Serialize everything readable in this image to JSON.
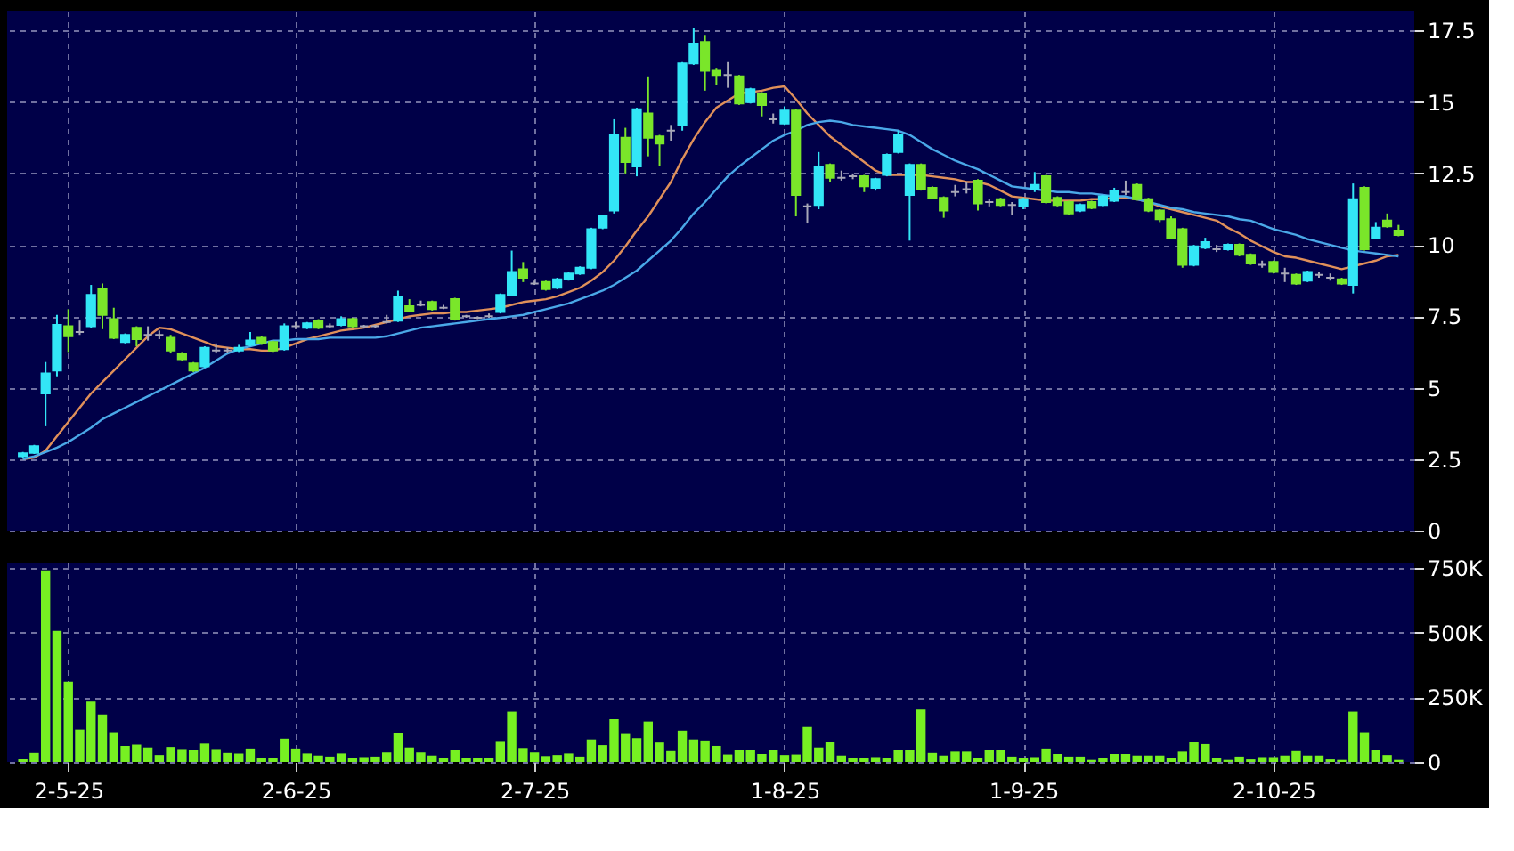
{
  "chart_data": [
    {
      "type": "candlestick",
      "categories": [
        null,
        null,
        null,
        null,
        null,
        null,
        null,
        null,
        null,
        null,
        null,
        null,
        null,
        null,
        null,
        null,
        null,
        null,
        null,
        null,
        null,
        null,
        null,
        null,
        null,
        null,
        null,
        null,
        null,
        null,
        null,
        null,
        null,
        null,
        null,
        null,
        null,
        null,
        null,
        null,
        null,
        null,
        null,
        null,
        null,
        null,
        null,
        null,
        null,
        null,
        null,
        null,
        null,
        null,
        null,
        null,
        null,
        null,
        null,
        null,
        null,
        null,
        null,
        null,
        null,
        null,
        null,
        null,
        null,
        null,
        null,
        null,
        null,
        null,
        null,
        null,
        null,
        null,
        null,
        null,
        null,
        null,
        null,
        null,
        null,
        null,
        null,
        null,
        null,
        null,
        null,
        null,
        null,
        null,
        null,
        null,
        null,
        null,
        null,
        null,
        null,
        null,
        null,
        null,
        null,
        null,
        null,
        null,
        null,
        null,
        null,
        null,
        null,
        null,
        null,
        null,
        null,
        null,
        null,
        null,
        null,
        null
      ],
      "ohlc": [
        [
          2.6,
          2.75,
          2.55,
          2.7
        ],
        [
          2.72,
          3.0,
          2.68,
          2.95
        ],
        [
          4.8,
          5.9,
          3.65,
          5.5
        ],
        [
          5.6,
          7.55,
          5.4,
          7.2
        ],
        [
          7.15,
          7.75,
          6.25,
          6.8
        ],
        [
          6.95,
          7.35,
          6.85,
          6.95
        ],
        [
          7.15,
          8.6,
          7.1,
          8.25
        ],
        [
          8.45,
          8.65,
          7.05,
          7.55
        ],
        [
          7.4,
          7.8,
          6.7,
          6.75
        ],
        [
          6.6,
          6.9,
          6.55,
          6.85
        ],
        [
          7.1,
          7.15,
          6.45,
          6.7
        ],
        [
          6.85,
          7.15,
          6.65,
          6.85
        ],
        [
          6.85,
          7.0,
          6.7,
          6.85
        ],
        [
          6.75,
          6.85,
          6.2,
          6.3
        ],
        [
          6.2,
          6.25,
          5.95,
          6.0
        ],
        [
          5.85,
          5.9,
          5.55,
          5.6
        ],
        [
          5.75,
          6.45,
          5.7,
          6.4
        ],
        [
          6.3,
          6.55,
          6.2,
          6.3
        ],
        [
          6.3,
          6.4,
          6.2,
          6.3
        ],
        [
          6.3,
          6.5,
          6.25,
          6.4
        ],
        [
          6.5,
          6.95,
          6.45,
          6.65
        ],
        [
          6.75,
          6.8,
          6.5,
          6.55
        ],
        [
          6.6,
          6.65,
          6.25,
          6.3
        ],
        [
          6.35,
          7.25,
          6.3,
          7.15
        ],
        [
          7.15,
          7.3,
          7.05,
          7.15
        ],
        [
          7.1,
          7.3,
          7.05,
          7.25
        ],
        [
          7.35,
          7.4,
          7.05,
          7.1
        ],
        [
          7.15,
          7.25,
          7.1,
          7.15
        ],
        [
          7.2,
          7.5,
          7.15,
          7.4
        ],
        [
          7.4,
          7.45,
          7.1,
          7.15
        ],
        [
          7.15,
          7.2,
          7.1,
          7.15
        ],
        [
          7.15,
          7.2,
          7.1,
          7.15
        ],
        [
          7.3,
          7.55,
          7.25,
          7.3
        ],
        [
          7.35,
          8.4,
          7.3,
          8.2
        ],
        [
          7.85,
          8.1,
          7.65,
          7.7
        ],
        [
          7.9,
          8.05,
          7.85,
          7.9
        ],
        [
          8.0,
          8.05,
          7.7,
          7.75
        ],
        [
          7.8,
          7.9,
          7.75,
          7.8
        ],
        [
          8.1,
          8.15,
          7.35,
          7.4
        ],
        [
          7.5,
          7.55,
          7.45,
          7.5
        ],
        [
          7.45,
          7.5,
          7.4,
          7.45
        ],
        [
          7.5,
          7.6,
          7.45,
          7.5
        ],
        [
          7.65,
          8.3,
          7.6,
          8.25
        ],
        [
          8.25,
          9.8,
          8.2,
          9.05
        ],
        [
          9.15,
          9.4,
          8.7,
          8.85
        ],
        [
          8.65,
          8.75,
          8.6,
          8.65
        ],
        [
          8.7,
          8.75,
          8.4,
          8.45
        ],
        [
          8.5,
          8.85,
          8.45,
          8.8
        ],
        [
          8.8,
          9.05,
          8.75,
          9.0
        ],
        [
          9.0,
          9.25,
          8.95,
          9.2
        ],
        [
          9.2,
          10.6,
          9.15,
          10.55
        ],
        [
          10.6,
          11.05,
          10.55,
          11.0
        ],
        [
          11.2,
          14.4,
          11.1,
          13.85
        ],
        [
          13.75,
          14.1,
          12.5,
          12.9
        ],
        [
          12.75,
          14.8,
          12.4,
          14.75
        ],
        [
          14.6,
          15.9,
          13.1,
          13.75
        ],
        [
          13.8,
          13.85,
          12.75,
          13.55
        ],
        [
          14.0,
          14.2,
          13.65,
          14.0
        ],
        [
          14.2,
          16.4,
          14.0,
          16.35
        ],
        [
          16.35,
          17.6,
          16.3,
          17.05
        ],
        [
          17.1,
          17.35,
          15.4,
          16.1
        ],
        [
          16.1,
          16.2,
          15.6,
          15.95
        ],
        [
          15.95,
          16.4,
          15.5,
          15.95
        ],
        [
          15.9,
          15.95,
          14.9,
          14.95
        ],
        [
          15.0,
          15.5,
          14.95,
          15.45
        ],
        [
          15.3,
          15.35,
          14.5,
          14.9
        ],
        [
          14.4,
          14.6,
          14.25,
          14.4
        ],
        [
          14.25,
          14.85,
          14.2,
          14.7
        ],
        [
          14.7,
          14.75,
          11.0,
          11.75
        ],
        [
          11.35,
          11.45,
          10.75,
          11.35
        ],
        [
          11.4,
          13.25,
          11.25,
          12.75
        ],
        [
          12.8,
          12.85,
          12.2,
          12.35
        ],
        [
          12.35,
          12.6,
          12.25,
          12.35
        ],
        [
          12.4,
          12.5,
          12.3,
          12.4
        ],
        [
          12.4,
          12.45,
          11.85,
          12.05
        ],
        [
          12.0,
          12.35,
          11.9,
          12.3
        ],
        [
          12.45,
          13.2,
          12.4,
          13.15
        ],
        [
          13.25,
          14.0,
          13.2,
          13.85
        ],
        [
          11.75,
          12.85,
          10.15,
          12.8
        ],
        [
          12.8,
          12.85,
          11.9,
          11.95
        ],
        [
          12.0,
          12.05,
          11.6,
          11.65
        ],
        [
          11.65,
          11.7,
          10.95,
          11.2
        ],
        [
          11.85,
          12.1,
          11.7,
          11.85
        ],
        [
          11.95,
          12.2,
          11.8,
          11.95
        ],
        [
          12.25,
          12.3,
          11.2,
          11.45
        ],
        [
          11.5,
          11.6,
          11.35,
          11.5
        ],
        [
          11.6,
          11.65,
          11.35,
          11.4
        ],
        [
          11.4,
          11.5,
          11.05,
          11.4
        ],
        [
          11.35,
          11.65,
          11.25,
          11.6
        ],
        [
          11.95,
          12.55,
          11.85,
          12.1
        ],
        [
          12.4,
          12.45,
          11.45,
          11.5
        ],
        [
          11.65,
          11.7,
          11.35,
          11.4
        ],
        [
          11.5,
          11.55,
          11.05,
          11.1
        ],
        [
          11.2,
          11.45,
          11.15,
          11.4
        ],
        [
          11.5,
          11.55,
          11.25,
          11.3
        ],
        [
          11.4,
          11.75,
          11.35,
          11.7
        ],
        [
          11.55,
          12.0,
          11.5,
          11.9
        ],
        [
          11.85,
          12.25,
          11.75,
          11.85
        ],
        [
          12.1,
          12.15,
          11.55,
          11.6
        ],
        [
          11.6,
          11.65,
          11.15,
          11.2
        ],
        [
          11.2,
          11.25,
          10.8,
          10.9
        ],
        [
          10.9,
          11.0,
          10.2,
          10.25
        ],
        [
          10.55,
          10.6,
          9.2,
          9.3
        ],
        [
          9.3,
          10.0,
          9.25,
          9.95
        ],
        [
          9.9,
          10.25,
          9.85,
          10.1
        ],
        [
          9.85,
          10.0,
          9.75,
          9.85
        ],
        [
          9.85,
          10.05,
          9.8,
          10.0
        ],
        [
          10.0,
          10.05,
          9.6,
          9.65
        ],
        [
          9.65,
          9.7,
          9.3,
          9.35
        ],
        [
          9.3,
          9.45,
          9.2,
          9.3
        ],
        [
          9.4,
          9.45,
          9.0,
          9.05
        ],
        [
          9.0,
          9.2,
          8.7,
          9.0
        ],
        [
          8.95,
          9.0,
          8.6,
          8.65
        ],
        [
          8.75,
          9.1,
          8.7,
          9.05
        ],
        [
          8.95,
          9.05,
          8.85,
          8.95
        ],
        [
          8.85,
          9.0,
          8.75,
          8.85
        ],
        [
          8.8,
          8.85,
          8.6,
          8.65
        ],
        [
          8.6,
          12.15,
          8.3,
          11.6
        ],
        [
          12.0,
          12.05,
          9.8,
          9.85
        ],
        [
          10.25,
          10.8,
          10.2,
          10.6
        ],
        [
          10.85,
          11.1,
          10.6,
          10.65
        ],
        [
          10.5,
          10.7,
          10.3,
          10.35
        ]
      ],
      "colors": [
        "#33e6f6",
        "#33e6f6",
        "#33e6f6",
        "#33e6f6",
        "#7ae62a",
        "#a8a8b8",
        "#33e6f6",
        "#7ae62a",
        "#7ae62a",
        "#33e6f6",
        "#7ae62a",
        "#a8a8b8",
        "#a8a8b8",
        "#7ae62a",
        "#7ae62a",
        "#7ae62a",
        "#33e6f6",
        "#a8a8b8",
        "#a8a8b8",
        "#33e6f6",
        "#33e6f6",
        "#7ae62a",
        "#7ae62a",
        "#33e6f6",
        "#a8a8b8",
        "#33e6f6",
        "#7ae62a",
        "#a8a8b8",
        "#33e6f6",
        "#7ae62a",
        "#a8a8b8",
        "#a8a8b8",
        "#a8a8b8",
        "#33e6f6",
        "#7ae62a",
        "#a8a8b8",
        "#7ae62a",
        "#a8a8b8",
        "#7ae62a",
        "#a8a8b8",
        "#a8a8b8",
        "#a8a8b8",
        "#33e6f6",
        "#33e6f6",
        "#7ae62a",
        "#a8a8b8",
        "#7ae62a",
        "#33e6f6",
        "#33e6f6",
        "#33e6f6",
        "#33e6f6",
        "#33e6f6",
        "#33e6f6",
        "#7ae62a",
        "#33e6f6",
        "#7ae62a",
        "#7ae62a",
        "#a8a8b8",
        "#33e6f6",
        "#33e6f6",
        "#7ae62a",
        "#7ae62a",
        "#a8a8b8",
        "#7ae62a",
        "#33e6f6",
        "#7ae62a",
        "#a8a8b8",
        "#33e6f6",
        "#7ae62a",
        "#a8a8b8",
        "#33e6f6",
        "#7ae62a",
        "#a8a8b8",
        "#a8a8b8",
        "#7ae62a",
        "#33e6f6",
        "#33e6f6",
        "#33e6f6",
        "#33e6f6",
        "#7ae62a",
        "#7ae62a",
        "#7ae62a",
        "#a8a8b8",
        "#a8a8b8",
        "#7ae62a",
        "#a8a8b8",
        "#7ae62a",
        "#a8a8b8",
        "#33e6f6",
        "#33e6f6",
        "#7ae62a",
        "#7ae62a",
        "#7ae62a",
        "#33e6f6",
        "#7ae62a",
        "#33e6f6",
        "#33e6f6",
        "#a8a8b8",
        "#7ae62a",
        "#7ae62a",
        "#7ae62a",
        "#7ae62a",
        "#7ae62a",
        "#33e6f6",
        "#33e6f6",
        "#a8a8b8",
        "#33e6f6",
        "#7ae62a",
        "#7ae62a",
        "#a8a8b8",
        "#7ae62a",
        "#a8a8b8",
        "#7ae62a",
        "#33e6f6",
        "#a8a8b8",
        "#a8a8b8",
        "#7ae62a",
        "#33e6f6",
        "#7ae62a",
        "#33e6f6",
        "#7ae62a",
        "#7ae62a"
      ],
      "series": [
        {
          "type": "line",
          "color": "#e0905a",
          "values": [
            2.5,
            2.55,
            2.8,
            3.3,
            3.8,
            4.3,
            4.8,
            5.2,
            5.6,
            6.0,
            6.4,
            6.8,
            7.1,
            7.05,
            6.9,
            6.75,
            6.6,
            6.45,
            6.4,
            6.35,
            6.35,
            6.3,
            6.3,
            6.4,
            6.55,
            6.7,
            6.8,
            6.9,
            7.0,
            7.05,
            7.1,
            7.2,
            7.3,
            7.4,
            7.5,
            7.55,
            7.6,
            7.6,
            7.65,
            7.65,
            7.7,
            7.75,
            7.8,
            7.9,
            8.0,
            8.05,
            8.1,
            8.2,
            8.35,
            8.5,
            8.75,
            9.05,
            9.45,
            9.95,
            10.5,
            11.0,
            11.6,
            12.2,
            13.0,
            13.7,
            14.3,
            14.8,
            15.05,
            15.3,
            15.35,
            15.4,
            15.5,
            15.55,
            15.1,
            14.6,
            14.2,
            13.8,
            13.5,
            13.2,
            12.9,
            12.6,
            12.45,
            12.45,
            12.45,
            12.45,
            12.4,
            12.35,
            12.3,
            12.2,
            12.2,
            12.1,
            11.9,
            11.7,
            11.65,
            11.6,
            11.55,
            11.55,
            11.55,
            11.55,
            11.6,
            11.6,
            11.65,
            11.65,
            11.6,
            11.5,
            11.35,
            11.25,
            11.15,
            11.05,
            10.95,
            10.85,
            10.6,
            10.4,
            10.15,
            9.95,
            9.75,
            9.6,
            9.55,
            9.45,
            9.35,
            9.25,
            9.15,
            9.25,
            9.35,
            9.45,
            9.6,
            9.65
          ]
        },
        {
          "type": "line",
          "color": "#4aa8e8",
          "values": [
            2.5,
            2.6,
            2.75,
            2.9,
            3.1,
            3.35,
            3.6,
            3.9,
            4.1,
            4.3,
            4.5,
            4.7,
            4.9,
            5.1,
            5.3,
            5.5,
            5.7,
            5.95,
            6.2,
            6.35,
            6.45,
            6.55,
            6.65,
            6.65,
            6.7,
            6.7,
            6.7,
            6.75,
            6.75,
            6.75,
            6.75,
            6.75,
            6.8,
            6.9,
            7.0,
            7.1,
            7.15,
            7.2,
            7.25,
            7.3,
            7.35,
            7.4,
            7.45,
            7.5,
            7.55,
            7.65,
            7.75,
            7.85,
            7.95,
            8.1,
            8.25,
            8.4,
            8.6,
            8.85,
            9.1,
            9.45,
            9.8,
            10.15,
            10.6,
            11.1,
            11.5,
            11.95,
            12.4,
            12.75,
            13.05,
            13.35,
            13.65,
            13.85,
            14.0,
            14.2,
            14.3,
            14.35,
            14.3,
            14.2,
            14.15,
            14.1,
            14.05,
            14.0,
            13.85,
            13.6,
            13.35,
            13.15,
            12.95,
            12.8,
            12.65,
            12.45,
            12.25,
            12.05,
            12.0,
            11.95,
            11.9,
            11.85,
            11.85,
            11.8,
            11.8,
            11.75,
            11.7,
            11.7,
            11.6,
            11.5,
            11.4,
            11.3,
            11.25,
            11.15,
            11.1,
            11.05,
            11.0,
            10.9,
            10.85,
            10.7,
            10.55,
            10.45,
            10.35,
            10.2,
            10.1,
            10.0,
            9.9,
            9.8,
            9.75,
            9.7,
            9.65,
            9.6
          ]
        }
      ],
      "ylim": [
        0,
        18.2
      ],
      "yticks": [
        0,
        2.5,
        5,
        7.5,
        10,
        12.5,
        15,
        17.5
      ],
      "grid": true,
      "tick_labels": "y"
    },
    {
      "type": "bar",
      "categories": [
        null,
        null,
        null,
        null,
        "2-5-25",
        null,
        null,
        null,
        null,
        null,
        null,
        null,
        null,
        null,
        null,
        null,
        null,
        null,
        null,
        null,
        null,
        null,
        null,
        null,
        "2-6-25",
        null,
        null,
        null,
        null,
        null,
        null,
        null,
        null,
        null,
        null,
        null,
        null,
        null,
        null,
        null,
        null,
        null,
        null,
        null,
        null,
        "2-7-25",
        null,
        null,
        null,
        null,
        null,
        null,
        null,
        null,
        null,
        null,
        null,
        null,
        null,
        null,
        null,
        null,
        null,
        null,
        null,
        null,
        null,
        "1-8-25",
        null,
        null,
        null,
        null,
        null,
        null,
        null,
        null,
        null,
        null,
        null,
        null,
        null,
        null,
        null,
        null,
        null,
        null,
        null,
        null,
        "1-9-25",
        null,
        null,
        null,
        null,
        null,
        null,
        null,
        null,
        null,
        null,
        null,
        null,
        null,
        null,
        null,
        null,
        null,
        null,
        null,
        null,
        null,
        "2-10-25",
        null,
        null,
        null,
        null,
        null,
        null,
        null,
        null,
        null,
        null,
        null
      ],
      "values": [
        10000,
        35000,
        740000,
        506000,
        310000,
        125000,
        233000,
        183000,
        115000,
        62000,
        67000,
        56000,
        27000,
        58000,
        50000,
        48000,
        71000,
        50000,
        35000,
        33000,
        52000,
        15000,
        17000,
        90000,
        52000,
        33000,
        25000,
        21000,
        33000,
        17000,
        19000,
        21000,
        37000,
        112000,
        56000,
        37000,
        25000,
        15000,
        46000,
        15000,
        15000,
        17000,
        81000,
        194000,
        54000,
        37000,
        23000,
        27000,
        33000,
        21000,
        87000,
        65000,
        165000,
        108000,
        92000,
        156000,
        75000,
        42000,
        121000,
        87000,
        83000,
        62000,
        29000,
        46000,
        46000,
        31000,
        48000,
        27000,
        29000,
        135000,
        56000,
        77000,
        25000,
        15000,
        15000,
        19000,
        15000,
        46000,
        46000,
        202000,
        35000,
        25000,
        40000,
        40000,
        15000,
        48000,
        48000,
        21000,
        17000,
        19000,
        52000,
        31000,
        21000,
        21000,
        8000,
        17000,
        31000,
        31000,
        25000,
        25000,
        25000,
        17000,
        40000,
        77000,
        69000,
        15000,
        8000,
        21000,
        10000,
        19000,
        19000,
        25000,
        42000,
        25000,
        25000,
        10000,
        8000,
        194000,
        115000,
        46000,
        27000,
        8000
      ],
      "color": "#77f022",
      "ylim": [
        0,
        770000
      ],
      "yticks": [
        0,
        {
          "value": 250000,
          "label": "250K"
        },
        {
          "value": 500000,
          "label": "500K"
        },
        {
          "value": 750000,
          "label": "750K"
        }
      ],
      "grid": true
    }
  ]
}
